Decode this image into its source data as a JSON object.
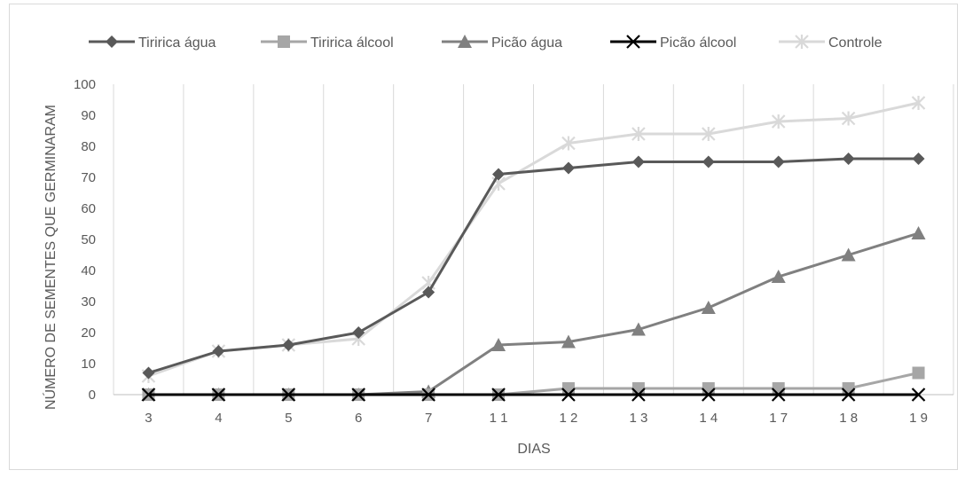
{
  "chart_data": {
    "type": "line",
    "title": "",
    "xlabel": "DIAS",
    "ylabel": "NÚMERO DE SEMENTES QUE GERMINARAM",
    "categories": [
      "3",
      "4",
      "5",
      "6",
      "7",
      "1 1",
      "1 2",
      "1 3",
      "1 4",
      "1 7",
      "1 8",
      "1 9"
    ],
    "ylim": [
      0,
      100
    ],
    "yticks": [
      "0",
      "10",
      "20",
      "30",
      "40",
      "50",
      "60",
      "70",
      "80",
      "90",
      "100"
    ],
    "grid": "vertical",
    "legend_position": "top",
    "series": [
      {
        "name": "Tiririca água",
        "values": [
          7,
          14,
          16,
          20,
          33,
          71,
          73,
          75,
          75,
          75,
          76,
          76
        ],
        "color": "#595959",
        "marker": "diamond"
      },
      {
        "name": "Tiririca álcool",
        "values": [
          0,
          0,
          0,
          0,
          0,
          0,
          2,
          2,
          2,
          2,
          2,
          7
        ],
        "color": "#a6a6a6",
        "marker": "square"
      },
      {
        "name": "Picão água",
        "values": [
          0,
          0,
          0,
          0,
          1,
          16,
          17,
          21,
          28,
          38,
          45,
          52
        ],
        "color": "#808080",
        "marker": "triangle"
      },
      {
        "name": "Picão álcool",
        "values": [
          0,
          0,
          0,
          0,
          0,
          0,
          0,
          0,
          0,
          0,
          0,
          0
        ],
        "color": "#000000",
        "marker": "x"
      },
      {
        "name": "Controle",
        "values": [
          6,
          14,
          16,
          18,
          36,
          68,
          81,
          84,
          84,
          88,
          89,
          94
        ],
        "color": "#d9d9d9",
        "marker": "star"
      }
    ]
  }
}
